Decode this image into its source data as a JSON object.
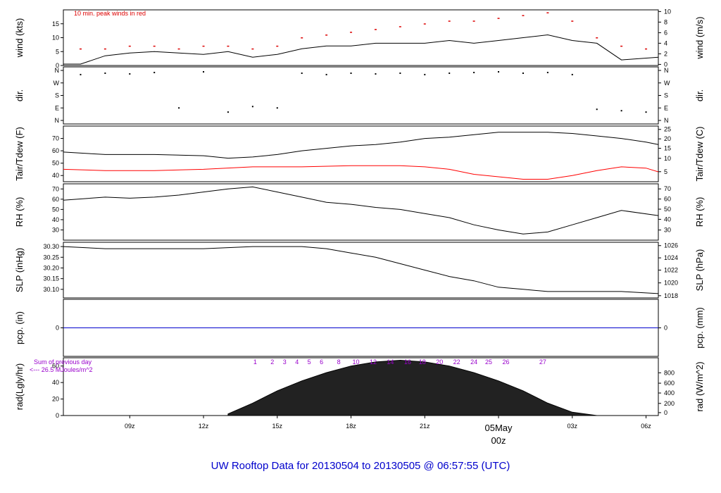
{
  "chart_data": {
    "type": "line",
    "title": "UW Rooftop Data for 20130504  to  20130505 @ 06:57:55  (UTC)",
    "x_axis": {
      "ticks": [
        "09z",
        "12z",
        "15z",
        "18z",
        "21z",
        "00z",
        "03z",
        "06z"
      ],
      "day_label": "05May",
      "day_tick": "00z"
    },
    "colors": {
      "title": "#0000cc",
      "peak": "#dd0000",
      "solar": "#9900cc",
      "pcp": "#0000cc",
      "tdew": "#ff0000"
    },
    "panels": [
      {
        "id": "wind",
        "ylabel_left": "wind (kts)",
        "ylabel_right": "wind (m/s)",
        "yticks_left": [
          "0",
          "5",
          "10",
          "15"
        ],
        "yticks_right": [
          "0",
          "2",
          "4",
          "6",
          "8",
          "10"
        ],
        "annotation": "10 min. peak winds in red",
        "series": [
          {
            "x": [
              6.3,
              7,
              8,
              9,
              10,
              11,
              12,
              13,
              14,
              15,
              16,
              17,
              18,
              19,
              20,
              21,
              22,
              23,
              24,
              25,
              26,
              27,
              28,
              29,
              30.5
            ],
            "y": [
              0.5,
              0.5,
              3.5,
              4.5,
              5,
              4.5,
              4,
              5,
              3,
              4,
              6,
              7,
              7,
              8,
              8,
              8,
              9,
              8,
              9,
              10,
              11,
              9,
              8,
              2,
              3
            ]
          },
          {
            "name": "peak",
            "x": [
              7,
              8,
              9,
              10,
              11,
              12,
              13,
              14,
              15,
              16,
              17,
              18,
              19,
              20,
              21,
              22,
              23,
              24,
              25,
              26,
              27,
              28,
              29,
              30
            ],
            "y": [
              6,
              6,
              7,
              7,
              6,
              7,
              7,
              6,
              7,
              10,
              11,
              12,
              13,
              14,
              15,
              16,
              16,
              17,
              18,
              19,
              16,
              10,
              7,
              6
            ]
          }
        ]
      },
      {
        "id": "dir",
        "ylabel_left": "dir.",
        "yticks_left": [
          "N",
          "W",
          "S",
          "E",
          "N"
        ],
        "yticks_right": [
          "N",
          "W",
          "S",
          "E",
          "N"
        ],
        "series": [
          {
            "name": "direction (deg)",
            "x": [
              7,
              8,
              9,
              10,
              11,
              12,
              13,
              14,
              15,
              16,
              17,
              18,
              19,
              20,
              21,
              22,
              23,
              24,
              25,
              26,
              27,
              28,
              29,
              30
            ],
            "y": [
              330,
              340,
              335,
              345,
              90,
              350,
              60,
              100,
              90,
              340,
              330,
              340,
              335,
              340,
              330,
              340,
              345,
              350,
              340,
              345,
              330,
              80,
              70,
              60
            ]
          }
        ]
      },
      {
        "id": "temp",
        "ylabel_left": "Tair/Tdew (F)",
        "ylabel_right": "Tair/Tdew (C)",
        "yticks_left": [
          "40",
          "50",
          "60",
          "70"
        ],
        "yticks_right": [
          "5",
          "10",
          "15",
          "20",
          "25"
        ],
        "series": [
          {
            "name": "Tair",
            "x": [
              6.3,
              8,
              10,
              12,
              13,
              14,
              15,
              16,
              17,
              18,
              19,
              20,
              21,
              22,
              23,
              24,
              25,
              26,
              27,
              28,
              29,
              30,
              30.5
            ],
            "y": [
              59,
              57,
              57,
              56,
              54,
              55,
              57,
              60,
              62,
              64,
              65,
              67,
              70,
              71,
              73,
              75,
              75,
              75,
              74,
              72,
              70,
              67,
              65
            ]
          },
          {
            "name": "Tdew",
            "x": [
              6.3,
              8,
              10,
              12,
              14,
              16,
              18,
              20,
              21,
              22,
              23,
              24,
              25,
              26,
              27,
              28,
              29,
              30,
              30.5
            ],
            "y": [
              45,
              44,
              44,
              45,
              47,
              47,
              48,
              48,
              47,
              45,
              41,
              39,
              37,
              37,
              40,
              44,
              47,
              46,
              43
            ]
          }
        ]
      },
      {
        "id": "rh",
        "ylabel_left": "RH (%)",
        "ylabel_right": "RH (%)",
        "yticks_left": [
          "30",
          "40",
          "50",
          "60",
          "70"
        ],
        "yticks_right": [
          "30",
          "40",
          "50",
          "60",
          "70"
        ],
        "series": [
          {
            "x": [
              6.3,
              8,
              9,
              10,
              11,
              12,
              13,
              14,
              15,
              16,
              17,
              18,
              19,
              20,
              21,
              22,
              23,
              24,
              25,
              26,
              27,
              28,
              29,
              30.5
            ],
            "y": [
              59,
              62,
              61,
              62,
              64,
              67,
              70,
              72,
              67,
              62,
              57,
              55,
              52,
              50,
              46,
              42,
              35,
              30,
              26,
              28,
              35,
              42,
              49,
              44
            ]
          }
        ]
      },
      {
        "id": "slp",
        "ylabel_left": "SLP (inHg)",
        "ylabel_right": "SLP (hPa)",
        "yticks_left": [
          "30.10",
          "30.15",
          "30.20",
          "30.25",
          "30.30"
        ],
        "yticks_right": [
          "1018",
          "1020",
          "1022",
          "1024",
          "1026"
        ],
        "series": [
          {
            "x": [
              6.3,
              8,
              10,
              12,
              14,
              16,
              17,
              18,
              19,
              20,
              21,
              22,
              23,
              24,
              25,
              26,
              27,
              28,
              29,
              30.5
            ],
            "y": [
              30.3,
              30.29,
              30.29,
              30.29,
              30.3,
              30.3,
              30.29,
              30.27,
              30.25,
              30.22,
              30.19,
              30.16,
              30.14,
              30.11,
              30.1,
              30.09,
              30.09,
              30.09,
              30.09,
              30.08
            ]
          }
        ]
      },
      {
        "id": "pcp",
        "ylabel_left": "pcp. (in)",
        "ylabel_right": "pcp. (mm)",
        "yticks_left": [
          "0"
        ],
        "yticks_right": [
          "0"
        ],
        "series": [
          {
            "x": [
              6.3,
              30.5
            ],
            "y": [
              0,
              0
            ]
          }
        ]
      },
      {
        "id": "rad",
        "ylabel_left": "rad(Lgly/hr)",
        "ylabel_right": "rad (W/m^2)",
        "yticks_left": [
          "0",
          "20",
          "40",
          "60"
        ],
        "yticks_right": [
          "0",
          "200",
          "400",
          "600",
          "800"
        ],
        "annotation": "Sum of previous day",
        "annotation2": "<--- 26.5 MJoules/m^2",
        "hour_labels": [
          "1",
          "2",
          "3",
          "4",
          "5",
          "6",
          "8",
          "10",
          "12",
          "14",
          "16",
          "18",
          "20",
          "22",
          "24",
          "25",
          "26",
          "27"
        ],
        "series": [
          {
            "x": [
              13,
              14,
              15,
              16,
              17,
              18,
              19,
              20,
              21,
              22,
              23,
              24,
              25,
              26,
              27,
              28,
              29,
              30.5
            ],
            "y": [
              2,
              15,
              30,
              42,
              52,
              60,
              65,
              67,
              65,
              60,
              52,
              42,
              30,
              15,
              4,
              0,
              0,
              0
            ]
          }
        ]
      }
    ]
  }
}
